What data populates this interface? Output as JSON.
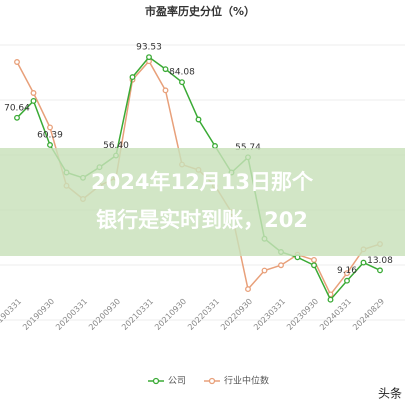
{
  "chart_data": {
    "type": "line",
    "title": "市盈率历史分位（%）",
    "categories": [
      "20190331",
      null,
      "20190930",
      null,
      "20200331",
      null,
      "20200930",
      null,
      "20210331",
      null,
      "20210930",
      null,
      "20220331",
      null,
      "20220930",
      null,
      "20230331",
      null,
      "20230930",
      null,
      "20240331",
      null,
      "20240829"
    ],
    "series": [
      {
        "name": "公司",
        "color": "#3aaa35",
        "values": [
          70.64,
          77,
          60.39,
          50,
          48,
          52,
          56.4,
          86,
          93.53,
          89,
          84.08,
          70,
          60,
          50,
          55.74,
          25,
          20,
          18,
          15,
          2,
          9.16,
          16,
          13.08
        ],
        "value_labels": [
          "70.64",
          null,
          "60.39",
          null,
          null,
          null,
          "56.40",
          null,
          "93.53",
          null,
          "84.08",
          null,
          null,
          null,
          "55.74",
          null,
          null,
          null,
          null,
          null,
          "9.16",
          null,
          "13.08"
        ]
      },
      {
        "name": "行业中位数",
        "color": "#e8a07a",
        "values": [
          91.7,
          80,
          67,
          45,
          40,
          45,
          48,
          85,
          92,
          81,
          53,
          51,
          45,
          35,
          6,
          13,
          15,
          19,
          17,
          4,
          12,
          21,
          23
        ]
      }
    ],
    "ylim": [
      0,
      100
    ],
    "overlay": [
      "2024年12月13日那个",
      "银行是实时到账，202"
    ],
    "watermark": "头条"
  }
}
